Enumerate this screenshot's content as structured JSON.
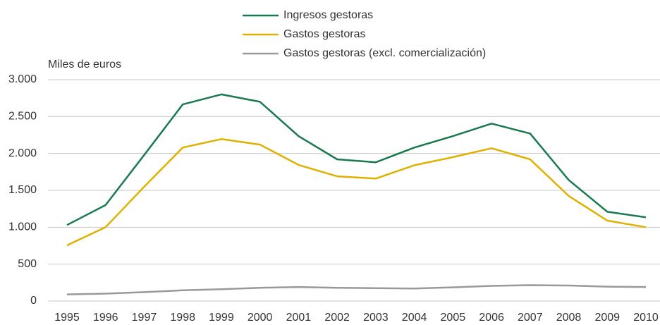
{
  "chart_data": {
    "type": "line",
    "y_label": "Miles de euros",
    "categories": [
      "1995",
      "1996",
      "1997",
      "1998",
      "1999",
      "2000",
      "2001",
      "2002",
      "2003",
      "2004",
      "2005",
      "2006",
      "2007",
      "2008",
      "2009",
      "2010"
    ],
    "series": [
      {
        "name": "Ingresos gestoras",
        "color": "#1a7a4f",
        "values": [
          1030,
          1300,
          1980,
          2665,
          2800,
          2700,
          2235,
          1920,
          1880,
          2080,
          2235,
          2405,
          2270,
          1640,
          1210,
          1135
        ]
      },
      {
        "name": "Gastos gestoras",
        "color": "#e0b000",
        "values": [
          755,
          1000,
          1550,
          2080,
          2195,
          2120,
          1845,
          1690,
          1660,
          1840,
          1950,
          2070,
          1920,
          1425,
          1090,
          1000
        ]
      },
      {
        "name": "Gastos gestoras (excl. comercialización)",
        "color": "#999999",
        "values": [
          90,
          100,
          120,
          145,
          160,
          180,
          190,
          180,
          175,
          170,
          185,
          205,
          215,
          210,
          195,
          190
        ]
      }
    ],
    "ylim": [
      0,
      3000
    ],
    "yticks": [
      0,
      500,
      {
        "value": 1000,
        "label": "1.000"
      },
      {
        "value": 1500,
        "label": "1.500"
      },
      {
        "value": 2000,
        "label": "2.000"
      },
      {
        "value": 2500,
        "label": "2.500"
      },
      {
        "value": 3000,
        "label": "3.000"
      }
    ],
    "grid": true
  }
}
